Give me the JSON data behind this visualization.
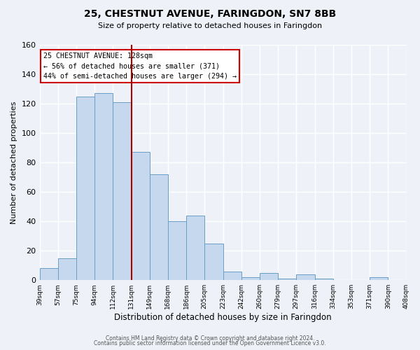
{
  "title": "25, CHESTNUT AVENUE, FARINGDON, SN7 8BB",
  "subtitle": "Size of property relative to detached houses in Faringdon",
  "xlabel": "Distribution of detached houses by size in Faringdon",
  "ylabel": "Number of detached properties",
  "bin_labels": [
    "39sqm",
    "57sqm",
    "75sqm",
    "94sqm",
    "112sqm",
    "131sqm",
    "149sqm",
    "168sqm",
    "186sqm",
    "205sqm",
    "223sqm",
    "242sqm",
    "260sqm",
    "279sqm",
    "297sqm",
    "316sqm",
    "334sqm",
    "353sqm",
    "371sqm",
    "390sqm",
    "408sqm"
  ],
  "bar_heights": [
    8,
    15,
    125,
    127,
    121,
    87,
    72,
    40,
    44,
    25,
    6,
    2,
    5,
    1,
    4,
    1,
    0,
    0,
    2,
    0
  ],
  "bar_color": "#c5d8ee",
  "bar_edge_color": "#6a9ec5",
  "vline_pos": 5,
  "vline_color": "#aa0000",
  "annotation_title": "25 CHESTNUT AVENUE: 128sqm",
  "annotation_line1": "← 56% of detached houses are smaller (371)",
  "annotation_line2": "44% of semi-detached houses are larger (294) →",
  "annotation_box_color": "#cc0000",
  "ylim": [
    0,
    160
  ],
  "yticks": [
    0,
    20,
    40,
    60,
    80,
    100,
    120,
    140,
    160
  ],
  "footer1": "Contains HM Land Registry data © Crown copyright and database right 2024.",
  "footer2": "Contains public sector information licensed under the Open Government Licence v3.0.",
  "bg_color": "#eef2f8",
  "grid_color": "#ffffff",
  "title_fontsize": 10,
  "subtitle_fontsize": 8
}
